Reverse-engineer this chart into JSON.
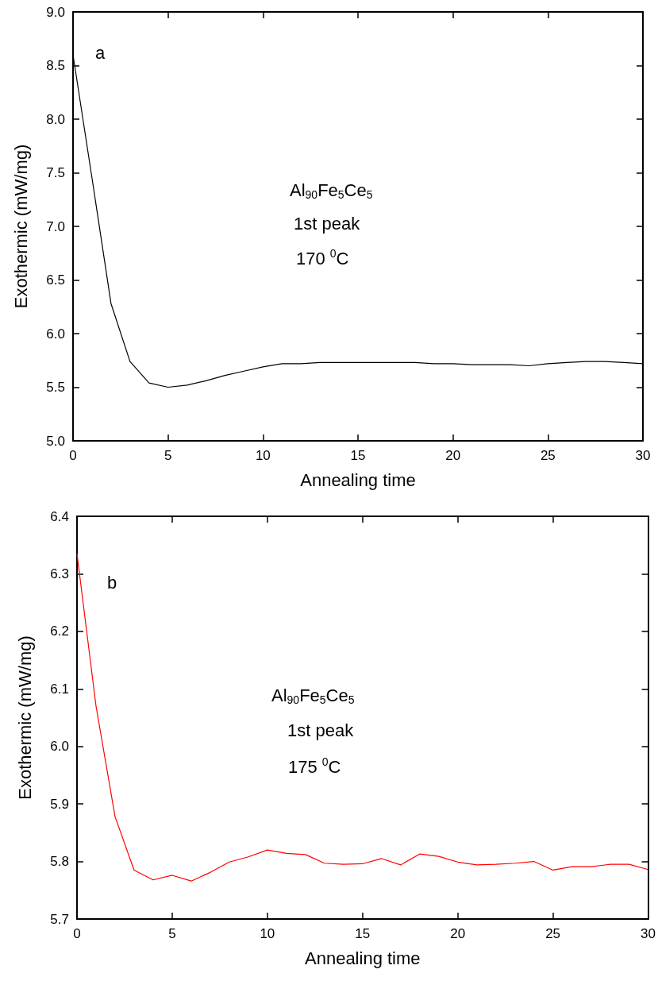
{
  "chart_data": [
    {
      "type": "line",
      "xlabel": "Annealing time",
      "ylabel": "Exothermic (mW/mg)",
      "annotations": [
        "a",
        "Al$_{90}$Fe$_{5}$Ce$_{5}$",
        "1st peak",
        "170 $^{0}$C"
      ],
      "x": [
        0,
        1,
        2,
        3,
        4,
        5,
        6,
        7,
        8,
        9,
        10,
        11,
        12,
        13,
        14,
        15,
        16,
        17,
        18,
        19,
        20,
        21,
        22,
        23,
        24,
        25,
        26,
        27,
        28,
        29,
        30
      ],
      "series": [
        {
          "color": "#000000",
          "values": [
            8.6,
            7.45,
            6.28,
            5.74,
            5.54,
            5.5,
            5.52,
            5.56,
            5.61,
            5.65,
            5.69,
            5.72,
            5.72,
            5.73,
            5.73,
            5.73,
            5.73,
            5.73,
            5.73,
            5.72,
            5.72,
            5.71,
            5.71,
            5.71,
            5.7,
            5.72,
            5.73,
            5.74,
            5.74,
            5.73,
            5.72
          ]
        }
      ],
      "xlim": [
        0,
        30
      ],
      "xticks": [
        0,
        5,
        10,
        15,
        20,
        25,
        30
      ],
      "ylim": [
        5,
        9
      ],
      "yticks": [
        {
          "value": 5,
          "label": "5.0"
        },
        5.5,
        {
          "value": 6,
          "label": "6.0"
        },
        6.5,
        {
          "value": 7,
          "label": "7.0"
        },
        7.5,
        {
          "value": 8,
          "label": "8.0"
        },
        8.5,
        {
          "value": 9,
          "label": "9.0"
        }
      ]
    },
    {
      "type": "line",
      "xlabel": "Annealing time",
      "ylabel": "Exothermic (mW/mg)",
      "annotations": [
        "b",
        "Al$_{90}$Fe$_{5}$Ce$_{5}$",
        "1st peak",
        "175 $^{0}$C"
      ],
      "x": [
        0,
        1,
        2,
        3,
        4,
        5,
        6,
        7,
        8,
        9,
        10,
        11,
        12,
        13,
        14,
        15,
        16,
        17,
        18,
        19,
        20,
        21,
        22,
        23,
        24,
        25,
        26,
        27,
        28,
        29,
        30
      ],
      "series": [
        {
          "color": "#ff0000",
          "values": [
            6.335,
            6.07,
            5.878,
            5.785,
            5.768,
            5.776,
            5.766,
            5.781,
            5.799,
            5.808,
            5.82,
            5.814,
            5.812,
            5.797,
            5.795,
            5.796,
            5.805,
            5.794,
            5.813,
            5.809,
            5.799,
            5.794,
            5.795,
            5.797,
            5.8,
            5.785,
            5.791,
            5.791,
            5.795,
            5.795,
            5.786
          ]
        }
      ],
      "xlim": [
        0,
        30
      ],
      "xticks": [
        0,
        5,
        10,
        15,
        20,
        25,
        30
      ],
      "ylim": [
        5.7,
        6.4
      ],
      "yticks": [
        5.7,
        5.8,
        5.9,
        {
          "value": 6,
          "label": "6.0"
        },
        6.1,
        6.2,
        6.3,
        6.4
      ]
    }
  ]
}
